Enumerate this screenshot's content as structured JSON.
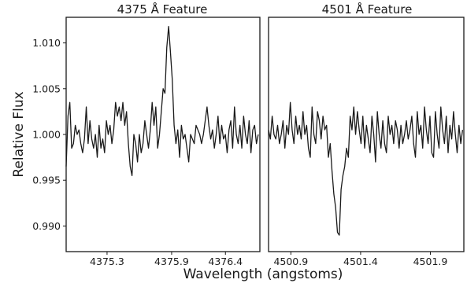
{
  "chart_data": [
    {
      "type": "line",
      "title": "4375 Å Feature",
      "xlabel": "Wavelength (angstoms)",
      "ylabel": "Relative Flux",
      "xlim": [
        4374.92,
        4376.72
      ],
      "ylim": [
        0.9872,
        1.0128
      ],
      "xticks": [
        4375.3,
        4375.9,
        4376.4
      ],
      "xtick_labels": [
        "4375.3",
        "4375.9",
        "4376.4"
      ],
      "yticks": [
        0.99,
        0.995,
        1.0,
        1.005,
        1.01
      ],
      "ytick_labels": [
        "0.990",
        "0.995",
        "1.000",
        "1.005",
        "1.010"
      ],
      "grid": false,
      "series": [
        {
          "x": [
            4374.92,
            4374.937,
            4374.954,
            4374.971,
            4374.988,
            4375.005,
            4375.022,
            4375.039,
            4375.056,
            4375.073,
            4375.09,
            4375.107,
            4375.124,
            4375.141,
            4375.158,
            4375.175,
            4375.192,
            4375.209,
            4375.226,
            4375.243,
            4375.26,
            4375.277,
            4375.294,
            4375.311,
            4375.328,
            4375.345,
            4375.362,
            4375.379,
            4375.396,
            4375.413,
            4375.43,
            4375.447,
            4375.464,
            4375.481,
            4375.498,
            4375.515,
            4375.532,
            4375.549,
            4375.566,
            4375.583,
            4375.6,
            4375.617,
            4375.634,
            4375.651,
            4375.668,
            4375.685,
            4375.702,
            4375.719,
            4375.736,
            4375.753,
            4375.77,
            4375.787,
            4375.804,
            4375.821,
            4375.838,
            4375.855,
            4375.872,
            4375.889,
            4375.906,
            4375.923,
            4375.94,
            4375.957,
            4375.974,
            4375.991,
            4376.008,
            4376.025,
            4376.042,
            4376.059,
            4376.076,
            4376.093,
            4376.11,
            4376.127,
            4376.144,
            4376.161,
            4376.178,
            4376.195,
            4376.212,
            4376.229,
            4376.246,
            4376.263,
            4376.28,
            4376.297,
            4376.314,
            4376.331,
            4376.348,
            4376.365,
            4376.382,
            4376.399,
            4376.416,
            4376.433,
            4376.45,
            4376.467,
            4376.484,
            4376.501,
            4376.518,
            4376.535,
            4376.552,
            4376.569,
            4376.586,
            4376.603,
            4376.62,
            4376.637,
            4376.654,
            4376.671,
            4376.688,
            4376.705
          ],
          "y": [
            0.9965,
            1.002,
            1.0035,
            0.9985,
            0.999,
            1.001,
            1.0,
            1.0005,
            0.999,
            0.998,
            0.9995,
            1.003,
            0.999,
            1.0015,
            0.9995,
            0.9985,
            1.0,
            0.9975,
            1.001,
            0.9985,
            0.9995,
            0.998,
            1.0015,
            1.0,
            1.001,
            0.999,
            1.0005,
            1.0035,
            1.002,
            1.003,
            1.0015,
            1.0035,
            1.001,
            1.0025,
            0.999,
            0.9965,
            0.9955,
            1.0,
            0.999,
            0.997,
            1.0,
            0.998,
            0.999,
            1.0015,
            1.0,
            0.9985,
            1.0005,
            1.0035,
            1.001,
            1.003,
            0.9985,
            1.0,
            1.0025,
            1.005,
            1.0045,
            1.0095,
            1.0118,
            1.009,
            1.006,
            1.001,
            0.999,
            1.0005,
            0.9975,
            1.001,
            0.9995,
            1.0,
            0.9985,
            0.997,
            1.0,
            0.9995,
            0.999,
            1.001,
            1.0005,
            1.0,
            0.999,
            1.0,
            1.0015,
            1.003,
            1.001,
            0.9995,
            1.0005,
            0.9985,
            1.0,
            1.002,
            0.999,
            1.001,
            0.9995,
            1.0,
            0.998,
            1.0005,
            1.0015,
            0.9985,
            1.003,
            1.0,
            0.999,
            1.001,
            0.9985,
            1.002,
            1.0,
            0.999,
            1.0015,
            0.998,
            1.0005,
            1.001,
            0.999,
            1.0
          ]
        }
      ]
    },
    {
      "type": "line",
      "title": "4501 Å Feature",
      "xlabel": "Wavelength (angstoms)",
      "ylabel": "Relative Flux",
      "xlim": [
        4500.74,
        4502.14
      ],
      "ylim": [
        0.9872,
        1.0128
      ],
      "xticks": [
        4500.9,
        4501.4,
        4501.9
      ],
      "xtick_labels": [
        "4500.9",
        "4501.4",
        "4501.9"
      ],
      "grid": false,
      "series": [
        {
          "x": [
            4500.74,
            4500.753,
            4500.766,
            4500.779,
            4500.792,
            4500.805,
            4500.818,
            4500.831,
            4500.844,
            4500.857,
            4500.87,
            4500.883,
            4500.896,
            4500.909,
            4500.922,
            4500.935,
            4500.948,
            4500.961,
            4500.974,
            4500.987,
            4501.0,
            4501.013,
            4501.026,
            4501.039,
            4501.052,
            4501.065,
            4501.078,
            4501.091,
            4501.104,
            4501.117,
            4501.13,
            4501.143,
            4501.156,
            4501.169,
            4501.182,
            4501.195,
            4501.208,
            4501.221,
            4501.234,
            4501.247,
            4501.26,
            4501.273,
            4501.286,
            4501.299,
            4501.312,
            4501.325,
            4501.338,
            4501.351,
            4501.364,
            4501.377,
            4501.39,
            4501.403,
            4501.416,
            4501.429,
            4501.442,
            4501.455,
            4501.468,
            4501.481,
            4501.494,
            4501.507,
            4501.52,
            4501.533,
            4501.546,
            4501.559,
            4501.572,
            4501.585,
            4501.598,
            4501.611,
            4501.624,
            4501.637,
            4501.65,
            4501.663,
            4501.676,
            4501.689,
            4501.702,
            4501.715,
            4501.728,
            4501.741,
            4501.754,
            4501.767,
            4501.78,
            4501.793,
            4501.806,
            4501.819,
            4501.832,
            4501.845,
            4501.858,
            4501.871,
            4501.884,
            4501.897,
            4501.91,
            4501.923,
            4501.936,
            4501.949,
            4501.962,
            4501.975,
            4501.988,
            4502.001,
            4502.014,
            4502.027,
            4502.04,
            4502.053,
            4502.066,
            4502.079,
            4502.092,
            4502.105,
            4502.118,
            4502.131
          ],
          "y": [
            1.0005,
            0.9995,
            1.002,
            1.0,
            0.9995,
            1.001,
            0.999,
            1.0,
            1.0015,
            0.9985,
            1.001,
            1.0,
            1.0035,
            1.0005,
            0.999,
            1.002,
            1.0,
            1.001,
            0.9995,
            1.0025,
            1.0,
            1.001,
            0.9985,
            0.9975,
            1.003,
            1.0,
            0.999,
            1.0025,
            1.0015,
            0.9995,
            1.002,
            1.0005,
            1.001,
            0.9975,
            0.999,
            0.996,
            0.9935,
            0.992,
            0.9893,
            0.989,
            0.994,
            0.9955,
            0.9965,
            0.9985,
            0.9975,
            1.002,
            1.0005,
            1.003,
            1.0,
            1.0025,
            1.0005,
            0.999,
            1.002,
            0.9985,
            1.001,
            0.9995,
            0.998,
            1.002,
            1.0,
            0.997,
            1.0025,
            1.0,
            0.9985,
            1.0015,
            0.999,
            0.998,
            1.002,
            1.0,
            1.001,
            0.999,
            1.0015,
            1.0005,
            0.9985,
            1.001,
            0.999,
            1.0,
            1.0015,
            0.9995,
            1.0005,
            1.002,
            0.999,
            0.9975,
            1.0025,
            1.0,
            1.001,
            0.9985,
            1.003,
            1.0005,
            0.999,
            1.002,
            0.998,
            0.9975,
            1.0025,
            1.0,
            0.9985,
            1.003,
            1.0005,
            0.999,
            1.002,
            0.998,
            1.001,
            0.9995,
            1.0025,
            1.0,
            0.998,
            1.001,
            0.999,
            1.0005
          ]
        }
      ]
    }
  ]
}
